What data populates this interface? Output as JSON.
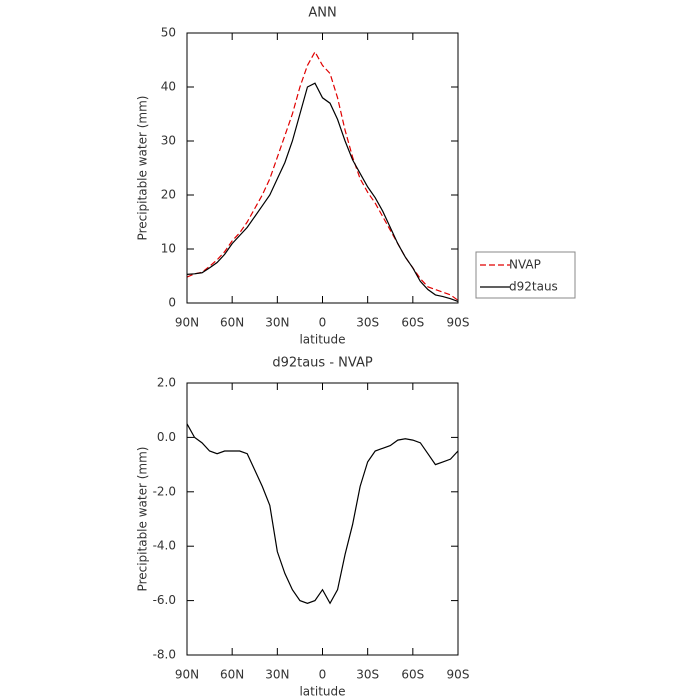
{
  "chart_data": [
    {
      "type": "line",
      "title": "ANN",
      "x_label": "latitude",
      "y_label": "Precipitable water (mm)",
      "x": [
        90,
        85,
        80,
        75,
        70,
        65,
        60,
        55,
        50,
        45,
        40,
        35,
        30,
        25,
        20,
        15,
        10,
        5,
        0,
        -5,
        -10,
        -15,
        -20,
        -25,
        -30,
        -35,
        -40,
        -45,
        -50,
        -55,
        -60,
        -65,
        -70,
        -75,
        -80,
        -85,
        -90
      ],
      "series": [
        {
          "name": "NVAP",
          "color": "#e00000",
          "linestyle": "dashed",
          "values": [
            4.8,
            5.4,
            5.7,
            6.8,
            8,
            9.5,
            11.5,
            13,
            15,
            17.5,
            20,
            23,
            27,
            31,
            35,
            40,
            44,
            46.5,
            44,
            42.5,
            38,
            32,
            27,
            23,
            20.5,
            18.5,
            16,
            13.5,
            11,
            8.5,
            6.5,
            4.5,
            3,
            2.5,
            2,
            1.5,
            0.5
          ]
        },
        {
          "name": "d92taus",
          "color": "#000000",
          "linestyle": "solid",
          "values": [
            5.3,
            5.4,
            5.6,
            6.5,
            7.5,
            9,
            11,
            12.5,
            14,
            16,
            18,
            20,
            23,
            26,
            30,
            35,
            40,
            40.7,
            38,
            37,
            34,
            30,
            26.5,
            24,
            21.5,
            19.5,
            17,
            14,
            11,
            8.5,
            6.5,
            4,
            2.5,
            1.5,
            1.2,
            0.8,
            0.3
          ]
        }
      ],
      "xlim": [
        90,
        -90
      ],
      "xticks": [
        {
          "value": 90,
          "label": "90N"
        },
        {
          "value": 60,
          "label": "60N"
        },
        {
          "value": 30,
          "label": "30N"
        },
        0,
        {
          "value": -30,
          "label": "30S"
        },
        {
          "value": -60,
          "label": "60S"
        },
        {
          "value": -90,
          "label": "90S"
        }
      ],
      "ylim": [
        0,
        50
      ],
      "yticks": [
        0,
        10,
        20,
        30,
        40,
        50
      ],
      "legend": "right"
    },
    {
      "type": "line",
      "title": "d92taus - NVAP",
      "x_label": "latitude",
      "y_label": "Precipitable water (mm)",
      "x": [
        90,
        85,
        80,
        75,
        70,
        65,
        60,
        55,
        50,
        45,
        40,
        35,
        30,
        25,
        20,
        15,
        10,
        5,
        0,
        -5,
        -10,
        -15,
        -20,
        -25,
        -30,
        -35,
        -40,
        -45,
        -50,
        -55,
        -60,
        -65,
        -70,
        -75,
        -80,
        -85,
        -90
      ],
      "series": [
        {
          "color": "#000000",
          "linestyle": "solid",
          "values": [
            0.5,
            0,
            -0.2,
            -0.5,
            -0.6,
            -0.5,
            -0.5,
            -0.5,
            -0.6,
            -1.2,
            -1.8,
            -2.5,
            -4.2,
            -5,
            -5.6,
            -6,
            -6.1,
            -6,
            -5.6,
            -6.1,
            -5.6,
            -4.3,
            -3.2,
            -1.8,
            -0.9,
            -0.5,
            -0.4,
            -0.3,
            -0.1,
            -0.05,
            -0.1,
            -0.2,
            -0.6,
            -1,
            -0.9,
            -0.8,
            -0.5
          ]
        }
      ],
      "xlim": [
        90,
        -90
      ],
      "xticks": [
        {
          "value": 90,
          "label": "90N"
        },
        {
          "value": 60,
          "label": "60N"
        },
        {
          "value": 30,
          "label": "30N"
        },
        0,
        {
          "value": -30,
          "label": "30S"
        },
        {
          "value": -60,
          "label": "60S"
        },
        {
          "value": -90,
          "label": "90S"
        }
      ],
      "ylim": [
        -8,
        2
      ],
      "yticks": [
        {
          "value": -8,
          "label": "-8.0"
        },
        {
          "value": -6,
          "label": "-6.0"
        },
        {
          "value": -4,
          "label": "-4.0"
        },
        {
          "value": -2,
          "label": "-2.0"
        },
        {
          "value": 0,
          "label": "0.0"
        },
        {
          "value": 2,
          "label": "2.0"
        }
      ]
    }
  ]
}
